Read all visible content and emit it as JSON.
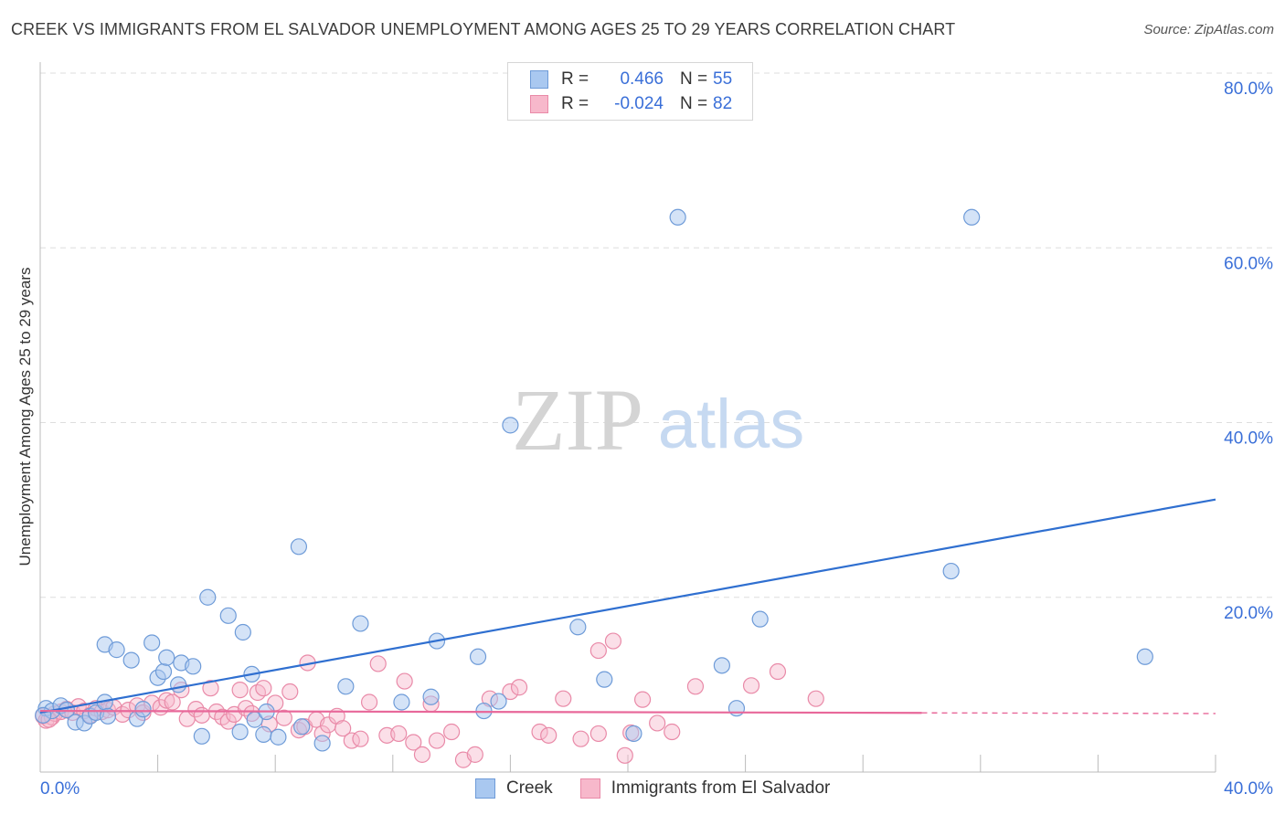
{
  "title": "CREEK VS IMMIGRANTS FROM EL SALVADOR UNEMPLOYMENT AMONG AGES 25 TO 29 YEARS CORRELATION CHART",
  "source": "Source: ZipAtlas.com",
  "watermark": {
    "zip": "ZIP",
    "atlas": "atlas"
  },
  "legend": {
    "rows": [
      {
        "r_label": "R =",
        "r_value": "0.466",
        "n_label": "N =",
        "n_value": "55"
      },
      {
        "r_label": "R =",
        "r_value": "-0.024",
        "n_label": "N =",
        "n_value": "82"
      }
    ]
  },
  "bottom_legend": {
    "series1": "Creek",
    "series2": "Immigrants from El Salvador"
  },
  "colors": {
    "creek_fill": "#a9c8f0",
    "creek_stroke": "#6e9bd8",
    "creek_line": "#2f6fd0",
    "salv_fill": "#f7b8cb",
    "salv_stroke": "#e98aa8",
    "salv_line": "#e8689a",
    "axis_text": "#3a6fd8",
    "grid": "#dedede"
  },
  "chart_data": {
    "type": "scatter",
    "title": "CREEK VS IMMIGRANTS FROM EL SALVADOR UNEMPLOYMENT AMONG AGES 25 TO 29 YEARS CORRELATION CHART",
    "xlabel": "",
    "ylabel": "Unemployment Among Ages 25 to 29 years",
    "xlim": [
      0,
      40
    ],
    "ylim": [
      0,
      80
    ],
    "x_tick_labels": [
      "0.0%",
      "40.0%"
    ],
    "y_ticks": [
      20,
      40,
      60,
      80
    ],
    "y_tick_labels": [
      "20.0%",
      "40.0%",
      "60.0%",
      "80.0%"
    ],
    "series": [
      {
        "name": "Creek",
        "R": 0.466,
        "N": 55,
        "trend": {
          "x": [
            0,
            40
          ],
          "y": [
            6.8,
            31.2
          ],
          "dashed_from": null
        },
        "points": [
          [
            0.2,
            7.3
          ],
          [
            0.4,
            7.0
          ],
          [
            0.7,
            7.6
          ],
          [
            0.9,
            7.1
          ],
          [
            1.2,
            5.7
          ],
          [
            1.5,
            5.6
          ],
          [
            1.7,
            6.4
          ],
          [
            1.9,
            6.8
          ],
          [
            2.2,
            8.0
          ],
          [
            2.3,
            6.4
          ],
          [
            2.2,
            14.6
          ],
          [
            2.6,
            14.0
          ],
          [
            3.1,
            12.8
          ],
          [
            3.3,
            6.1
          ],
          [
            3.5,
            7.2
          ],
          [
            3.8,
            14.8
          ],
          [
            4.0,
            10.8
          ],
          [
            4.2,
            11.5
          ],
          [
            4.3,
            13.1
          ],
          [
            4.7,
            10.0
          ],
          [
            4.8,
            12.5
          ],
          [
            5.2,
            12.1
          ],
          [
            5.5,
            4.1
          ],
          [
            5.7,
            20.0
          ],
          [
            6.4,
            17.9
          ],
          [
            6.8,
            4.6
          ],
          [
            6.9,
            16.0
          ],
          [
            7.2,
            11.2
          ],
          [
            7.3,
            6.0
          ],
          [
            7.6,
            4.3
          ],
          [
            7.7,
            6.9
          ],
          [
            8.1,
            4.0
          ],
          [
            8.8,
            25.8
          ],
          [
            8.9,
            5.2
          ],
          [
            9.6,
            3.3
          ],
          [
            10.4,
            9.8
          ],
          [
            10.9,
            17.0
          ],
          [
            12.3,
            8.0
          ],
          [
            13.3,
            8.6
          ],
          [
            13.5,
            15.0
          ],
          [
            14.9,
            13.2
          ],
          [
            15.1,
            7.0
          ],
          [
            15.6,
            8.1
          ],
          [
            16.0,
            39.7
          ],
          [
            18.3,
            16.6
          ],
          [
            19.2,
            10.6
          ],
          [
            20.2,
            4.4
          ],
          [
            21.7,
            63.5
          ],
          [
            23.2,
            12.2
          ],
          [
            23.7,
            7.3
          ],
          [
            24.5,
            17.5
          ],
          [
            31.7,
            63.5
          ],
          [
            31.0,
            23.0
          ],
          [
            37.6,
            13.2
          ],
          [
            0.1,
            6.5
          ]
        ]
      },
      {
        "name": "Immigrants from El Salvador",
        "R": -0.024,
        "N": 82,
        "trend": {
          "x": [
            0,
            40
          ],
          "y": [
            7.0,
            6.7
          ],
          "dashed_from": 30
        },
        "points": [
          [
            0.1,
            6.4
          ],
          [
            0.2,
            5.9
          ],
          [
            0.4,
            6.3
          ],
          [
            0.5,
            6.7
          ],
          [
            0.7,
            6.9
          ],
          [
            0.9,
            7.2
          ],
          [
            1.1,
            6.8
          ],
          [
            1.3,
            7.5
          ],
          [
            1.5,
            7.0
          ],
          [
            1.7,
            6.5
          ],
          [
            1.9,
            7.3
          ],
          [
            2.1,
            6.9
          ],
          [
            2.3,
            7.1
          ],
          [
            2.5,
            7.4
          ],
          [
            2.8,
            6.6
          ],
          [
            3.0,
            7.1
          ],
          [
            3.3,
            7.6
          ],
          [
            3.5,
            6.8
          ],
          [
            3.8,
            7.9
          ],
          [
            4.1,
            7.4
          ],
          [
            4.3,
            8.2
          ],
          [
            4.5,
            8.0
          ],
          [
            4.8,
            9.4
          ],
          [
            5.0,
            6.1
          ],
          [
            5.3,
            7.2
          ],
          [
            5.5,
            6.5
          ],
          [
            5.8,
            9.6
          ],
          [
            6.0,
            6.9
          ],
          [
            6.2,
            6.3
          ],
          [
            6.4,
            5.8
          ],
          [
            6.6,
            6.6
          ],
          [
            6.8,
            9.4
          ],
          [
            7.0,
            7.3
          ],
          [
            7.2,
            6.7
          ],
          [
            7.4,
            9.1
          ],
          [
            7.6,
            9.6
          ],
          [
            7.8,
            5.5
          ],
          [
            8.0,
            7.9
          ],
          [
            8.3,
            6.2
          ],
          [
            8.5,
            9.2
          ],
          [
            8.8,
            4.8
          ],
          [
            9.0,
            5.2
          ],
          [
            9.1,
            12.5
          ],
          [
            9.4,
            6.0
          ],
          [
            9.6,
            4.4
          ],
          [
            9.8,
            5.4
          ],
          [
            10.1,
            6.4
          ],
          [
            10.3,
            5.0
          ],
          [
            10.6,
            3.6
          ],
          [
            10.9,
            3.8
          ],
          [
            11.2,
            8.0
          ],
          [
            11.5,
            12.4
          ],
          [
            11.8,
            4.2
          ],
          [
            12.2,
            4.4
          ],
          [
            12.4,
            10.4
          ],
          [
            12.7,
            3.4
          ],
          [
            13.0,
            2.0
          ],
          [
            13.3,
            7.8
          ],
          [
            13.5,
            3.6
          ],
          [
            14.0,
            4.6
          ],
          [
            14.4,
            1.4
          ],
          [
            14.8,
            2.0
          ],
          [
            15.3,
            8.4
          ],
          [
            16.0,
            9.2
          ],
          [
            16.3,
            9.7
          ],
          [
            17.0,
            4.6
          ],
          [
            17.3,
            4.2
          ],
          [
            17.8,
            8.4
          ],
          [
            18.4,
            3.8
          ],
          [
            19.0,
            13.9
          ],
          [
            19.5,
            15.0
          ],
          [
            19.0,
            4.4
          ],
          [
            19.9,
            1.9
          ],
          [
            20.1,
            4.5
          ],
          [
            20.5,
            8.3
          ],
          [
            21.0,
            5.6
          ],
          [
            21.5,
            4.6
          ],
          [
            22.3,
            9.8
          ],
          [
            25.1,
            11.5
          ],
          [
            26.4,
            8.4
          ],
          [
            24.2,
            9.9
          ],
          [
            0.3,
            6.0
          ]
        ]
      }
    ]
  }
}
